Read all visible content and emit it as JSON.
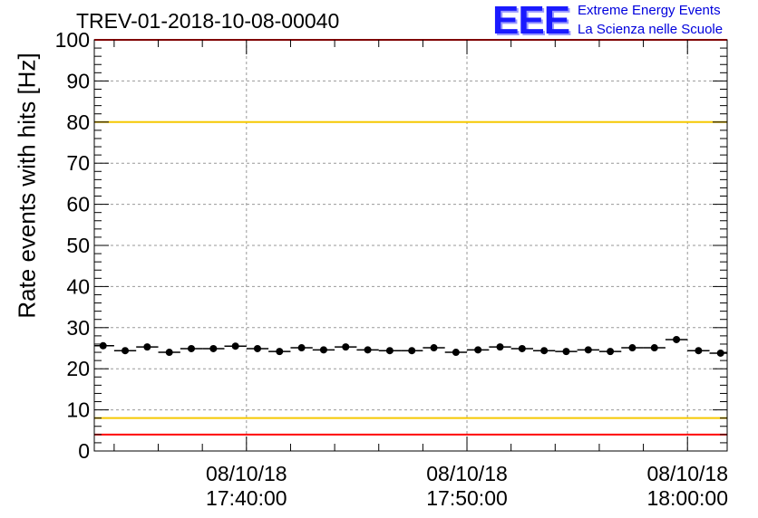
{
  "chart_title": "TREV-01-2018-10-08-00040",
  "logo": {
    "mark": "EEE",
    "line1": "Extreme Energy Events",
    "line2": "La Scienza nelle Scuole"
  },
  "chart_data": {
    "type": "scatter",
    "title": "TREV-01-2018-10-08-00040",
    "xlabel": "",
    "ylabel": "Rate events with hits [Hz]",
    "ylim": [
      0,
      100
    ],
    "yticks": [
      0,
      10,
      20,
      30,
      40,
      50,
      60,
      70,
      80,
      90,
      100
    ],
    "xlim_minutes": [
      -6.9,
      21.8
    ],
    "xticks": [
      {
        "date": "08/10/18",
        "time": "17:40:00",
        "minute": 0
      },
      {
        "date": "08/10/18",
        "time": "17:50:00",
        "minute": 10
      },
      {
        "date": "08/10/18",
        "time": "18:00:00",
        "minute": 20
      }
    ],
    "grid": true,
    "reference_lines": [
      {
        "y": 100,
        "color": "#ff0000"
      },
      {
        "y": 80,
        "color": "#f5c800"
      },
      {
        "y": 8,
        "color": "#f5c800"
      },
      {
        "y": 4,
        "color": "#ff0000"
      }
    ],
    "series": [
      {
        "marker_color": "#000000",
        "x_minutes": [
          -6.5,
          -5.5,
          -4.5,
          -3.5,
          -2.5,
          -1.5,
          -0.5,
          0.5,
          1.5,
          2.5,
          3.5,
          4.5,
          5.5,
          6.5,
          7.5,
          8.5,
          9.5,
          10.5,
          11.5,
          12.5,
          13.5,
          14.5,
          15.5,
          16.5,
          17.5,
          18.5,
          19.5,
          20.5,
          21.5
        ],
        "values": [
          25.6,
          24.4,
          25.3,
          24.0,
          24.9,
          24.9,
          25.5,
          24.9,
          24.2,
          25.1,
          24.6,
          25.3,
          24.6,
          24.4,
          24.4,
          25.1,
          24.0,
          24.6,
          25.3,
          24.9,
          24.4,
          24.2,
          24.6,
          24.2,
          25.1,
          25.1,
          27.1,
          24.4,
          23.8
        ]
      }
    ]
  }
}
